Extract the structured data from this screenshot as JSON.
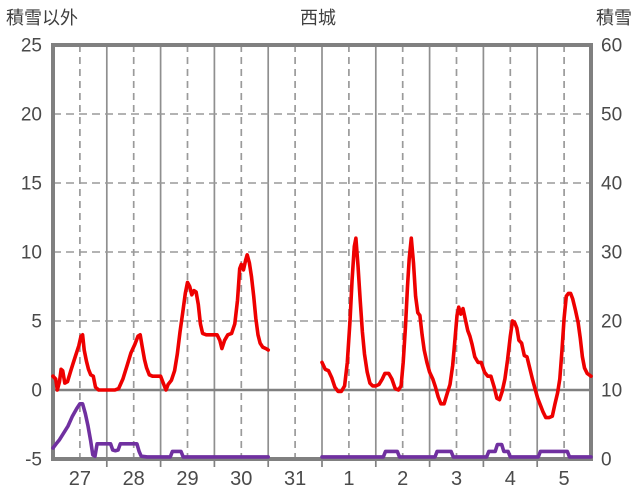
{
  "header": {
    "left_label": "積雪以外",
    "title": "西城",
    "right_label": "積雪"
  },
  "chart_data": {
    "type": "line",
    "title": "西城",
    "left_axis": {
      "label": "積雪以外",
      "min": -5,
      "max": 25,
      "ticks": [
        25,
        20,
        15,
        10,
        5,
        0,
        -5
      ],
      "grid_ticks": [
        20,
        15,
        10,
        5
      ],
      "zero_line": 0
    },
    "right_axis": {
      "label": "積雪",
      "min": 0,
      "max": 60,
      "ticks": [
        60,
        50,
        40,
        30,
        20,
        10,
        0
      ]
    },
    "x_axis": {
      "labels": [
        "27",
        "28",
        "29",
        "30",
        "31",
        "1",
        "2",
        "3",
        "4",
        "5"
      ],
      "unit": "day",
      "missing_day_label": "31"
    },
    "grid": {
      "frame_color": "#808080",
      "line_color": "#8f8f8f",
      "dash_color": "#9a9a9a",
      "text_color": "#4a4a4a"
    },
    "series": [
      {
        "name": "積雪",
        "axis": "right",
        "color": "#7030a0",
        "segments": [
          [
            [
              0.0,
              1.6
            ],
            [
              0.06,
              2.2
            ],
            [
              0.12,
              2.8
            ],
            [
              0.2,
              3.8
            ],
            [
              0.28,
              4.8
            ],
            [
              0.36,
              6.2
            ],
            [
              0.44,
              7.3
            ],
            [
              0.5,
              8.0
            ],
            [
              0.55,
              8.0
            ],
            [
              0.6,
              6.6
            ],
            [
              0.65,
              4.8
            ],
            [
              0.7,
              2.6
            ],
            [
              0.74,
              0.6
            ],
            [
              0.78,
              0.4
            ],
            [
              0.82,
              2.2
            ],
            [
              0.9,
              2.2
            ],
            [
              1.0,
              2.2
            ],
            [
              1.07,
              2.2
            ],
            [
              1.11,
              1.3
            ],
            [
              1.16,
              1.2
            ],
            [
              1.21,
              1.3
            ],
            [
              1.25,
              2.2
            ],
            [
              1.35,
              2.2
            ],
            [
              1.45,
              2.2
            ],
            [
              1.56,
              2.2
            ],
            [
              1.6,
              1.1
            ],
            [
              1.64,
              0.4
            ],
            [
              1.75,
              0.3
            ],
            [
              1.9,
              0.3
            ],
            [
              2.05,
              0.3
            ],
            [
              2.18,
              0.3
            ],
            [
              2.22,
              1.1
            ],
            [
              2.3,
              1.1
            ],
            [
              2.38,
              1.1
            ],
            [
              2.42,
              0.3
            ],
            [
              2.6,
              0.3
            ],
            [
              2.8,
              0.3
            ],
            [
              3.0,
              0.3
            ],
            [
              3.25,
              0.3
            ],
            [
              3.5,
              0.3
            ],
            [
              3.75,
              0.3
            ],
            [
              4.0,
              0.3
            ]
          ],
          [
            [
              5.0,
              0.3
            ],
            [
              5.25,
              0.3
            ],
            [
              5.5,
              0.3
            ],
            [
              5.75,
              0.3
            ],
            [
              6.0,
              0.3
            ],
            [
              6.14,
              0.3
            ],
            [
              6.18,
              1.1
            ],
            [
              6.3,
              1.1
            ],
            [
              6.4,
              1.1
            ],
            [
              6.44,
              0.3
            ],
            [
              6.6,
              0.3
            ],
            [
              6.8,
              0.3
            ],
            [
              7.0,
              0.3
            ],
            [
              7.1,
              0.3
            ],
            [
              7.14,
              1.1
            ],
            [
              7.25,
              1.1
            ],
            [
              7.4,
              1.1
            ],
            [
              7.44,
              0.3
            ],
            [
              7.6,
              0.3
            ],
            [
              7.8,
              0.3
            ],
            [
              8.0,
              0.3
            ],
            [
              8.06,
              0.3
            ],
            [
              8.1,
              1.1
            ],
            [
              8.22,
              1.1
            ],
            [
              8.26,
              2.1
            ],
            [
              8.34,
              2.1
            ],
            [
              8.38,
              1.1
            ],
            [
              8.46,
              1.1
            ],
            [
              8.5,
              0.3
            ],
            [
              8.7,
              0.3
            ],
            [
              8.9,
              0.3
            ],
            [
              9.02,
              0.3
            ],
            [
              9.06,
              1.1
            ],
            [
              9.2,
              1.1
            ],
            [
              9.35,
              1.1
            ],
            [
              9.5,
              1.1
            ],
            [
              9.56,
              1.1
            ],
            [
              9.6,
              0.3
            ],
            [
              9.75,
              0.3
            ],
            [
              9.9,
              0.3
            ],
            [
              10.0,
              0.3
            ]
          ]
        ]
      },
      {
        "name": "積雪以外",
        "axis": "left",
        "color": "#ee0000",
        "segments": [
          [
            [
              0.0,
              1.0
            ],
            [
              0.05,
              0.8
            ],
            [
              0.08,
              0.0
            ],
            [
              0.12,
              0.6
            ],
            [
              0.15,
              1.5
            ],
            [
              0.18,
              1.4
            ],
            [
              0.22,
              0.5
            ],
            [
              0.27,
              0.6
            ],
            [
              0.33,
              1.4
            ],
            [
              0.38,
              2.0
            ],
            [
              0.43,
              2.6
            ],
            [
              0.48,
              3.2
            ],
            [
              0.52,
              3.9
            ],
            [
              0.55,
              4.0
            ],
            [
              0.58,
              2.9
            ],
            [
              0.62,
              2.1
            ],
            [
              0.66,
              1.5
            ],
            [
              0.7,
              1.1
            ],
            [
              0.75,
              1.0
            ],
            [
              0.79,
              0.2
            ],
            [
              0.85,
              0.0
            ],
            [
              0.95,
              0.0
            ],
            [
              1.05,
              0.0
            ],
            [
              1.15,
              0.0
            ],
            [
              1.22,
              0.1
            ],
            [
              1.3,
              0.8
            ],
            [
              1.38,
              1.8
            ],
            [
              1.45,
              2.7
            ],
            [
              1.52,
              3.3
            ],
            [
              1.58,
              3.9
            ],
            [
              1.62,
              4.0
            ],
            [
              1.66,
              3.1
            ],
            [
              1.7,
              2.2
            ],
            [
              1.74,
              1.6
            ],
            [
              1.79,
              1.1
            ],
            [
              1.85,
              1.0
            ],
            [
              1.93,
              1.0
            ],
            [
              2.0,
              1.0
            ],
            [
              2.06,
              0.4
            ],
            [
              2.1,
              0.0
            ],
            [
              2.14,
              0.4
            ],
            [
              2.2,
              0.7
            ],
            [
              2.26,
              1.4
            ],
            [
              2.31,
              2.6
            ],
            [
              2.36,
              4.2
            ],
            [
              2.41,
              5.6
            ],
            [
              2.46,
              7.0
            ],
            [
              2.5,
              7.8
            ],
            [
              2.54,
              7.5
            ],
            [
              2.58,
              6.9
            ],
            [
              2.62,
              7.2
            ],
            [
              2.66,
              7.1
            ],
            [
              2.7,
              6.2
            ],
            [
              2.74,
              4.8
            ],
            [
              2.78,
              4.1
            ],
            [
              2.85,
              4.0
            ],
            [
              2.95,
              4.0
            ],
            [
              3.05,
              4.0
            ],
            [
              3.1,
              3.6
            ],
            [
              3.14,
              3.0
            ],
            [
              3.19,
              3.6
            ],
            [
              3.25,
              4.0
            ],
            [
              3.32,
              4.1
            ],
            [
              3.38,
              4.8
            ],
            [
              3.43,
              6.5
            ],
            [
              3.47,
              8.8
            ],
            [
              3.5,
              9.1
            ],
            [
              3.54,
              8.7
            ],
            [
              3.58,
              9.4
            ],
            [
              3.61,
              9.8
            ],
            [
              3.65,
              9.2
            ],
            [
              3.69,
              8.2
            ],
            [
              3.73,
              6.8
            ],
            [
              3.77,
              5.2
            ],
            [
              3.81,
              4.0
            ],
            [
              3.85,
              3.4
            ],
            [
              3.9,
              3.1
            ],
            [
              3.96,
              3.0
            ],
            [
              4.0,
              2.9
            ]
          ],
          [
            [
              5.0,
              2.0
            ],
            [
              5.06,
              1.5
            ],
            [
              5.12,
              1.4
            ],
            [
              5.18,
              0.9
            ],
            [
              5.24,
              0.2
            ],
            [
              5.3,
              -0.1
            ],
            [
              5.36,
              -0.1
            ],
            [
              5.42,
              0.3
            ],
            [
              5.47,
              2.0
            ],
            [
              5.52,
              5.0
            ],
            [
              5.56,
              8.0
            ],
            [
              5.6,
              10.4
            ],
            [
              5.63,
              11.0
            ],
            [
              5.67,
              9.0
            ],
            [
              5.71,
              6.5
            ],
            [
              5.75,
              4.2
            ],
            [
              5.79,
              2.6
            ],
            [
              5.84,
              1.3
            ],
            [
              5.89,
              0.5
            ],
            [
              5.94,
              0.3
            ],
            [
              6.0,
              0.3
            ],
            [
              6.06,
              0.4
            ],
            [
              6.12,
              0.8
            ],
            [
              6.17,
              1.2
            ],
            [
              6.24,
              1.2
            ],
            [
              6.3,
              0.8
            ],
            [
              6.36,
              0.1
            ],
            [
              6.42,
              0.0
            ],
            [
              6.47,
              0.3
            ],
            [
              6.51,
              2.0
            ],
            [
              6.55,
              4.5
            ],
            [
              6.59,
              7.5
            ],
            [
              6.62,
              9.5
            ],
            [
              6.66,
              11.0
            ],
            [
              6.7,
              9.2
            ],
            [
              6.74,
              6.8
            ],
            [
              6.78,
              5.6
            ],
            [
              6.82,
              5.4
            ],
            [
              6.86,
              4.0
            ],
            [
              6.9,
              2.9
            ],
            [
              6.95,
              2.0
            ],
            [
              7.0,
              1.3
            ],
            [
              7.06,
              0.8
            ],
            [
              7.11,
              0.2
            ],
            [
              7.16,
              -0.5
            ],
            [
              7.21,
              -1.0
            ],
            [
              7.27,
              -1.0
            ],
            [
              7.33,
              -0.2
            ],
            [
              7.38,
              0.4
            ],
            [
              7.43,
              1.8
            ],
            [
              7.47,
              3.6
            ],
            [
              7.51,
              5.4
            ],
            [
              7.54,
              6.0
            ],
            [
              7.58,
              5.5
            ],
            [
              7.62,
              5.9
            ],
            [
              7.66,
              5.2
            ],
            [
              7.71,
              4.3
            ],
            [
              7.75,
              3.9
            ],
            [
              7.79,
              3.3
            ],
            [
              7.84,
              2.4
            ],
            [
              7.9,
              2.0
            ],
            [
              7.96,
              2.0
            ],
            [
              8.02,
              1.3
            ],
            [
              8.08,
              1.0
            ],
            [
              8.14,
              1.0
            ],
            [
              8.2,
              0.2
            ],
            [
              8.25,
              -0.6
            ],
            [
              8.3,
              -0.7
            ],
            [
              8.35,
              -0.1
            ],
            [
              8.4,
              0.8
            ],
            [
              8.45,
              2.2
            ],
            [
              8.5,
              3.9
            ],
            [
              8.54,
              5.0
            ],
            [
              8.58,
              4.9
            ],
            [
              8.62,
              4.5
            ],
            [
              8.66,
              3.6
            ],
            [
              8.71,
              3.4
            ],
            [
              8.76,
              2.5
            ],
            [
              8.81,
              2.4
            ],
            [
              8.86,
              1.6
            ],
            [
              8.91,
              0.8
            ],
            [
              8.96,
              0.1
            ],
            [
              9.01,
              -0.6
            ],
            [
              9.06,
              -1.1
            ],
            [
              9.11,
              -1.6
            ],
            [
              9.16,
              -2.0
            ],
            [
              9.22,
              -2.0
            ],
            [
              9.28,
              -1.9
            ],
            [
              9.33,
              -1.0
            ],
            [
              9.38,
              -0.2
            ],
            [
              9.42,
              0.8
            ],
            [
              9.46,
              2.8
            ],
            [
              9.5,
              5.2
            ],
            [
              9.54,
              6.8
            ],
            [
              9.58,
              7.0
            ],
            [
              9.62,
              7.0
            ],
            [
              9.66,
              6.6
            ],
            [
              9.71,
              5.8
            ],
            [
              9.76,
              4.9
            ],
            [
              9.8,
              3.8
            ],
            [
              9.84,
              2.4
            ],
            [
              9.88,
              1.6
            ],
            [
              9.93,
              1.2
            ],
            [
              10.0,
              1.0
            ]
          ]
        ]
      }
    ]
  }
}
